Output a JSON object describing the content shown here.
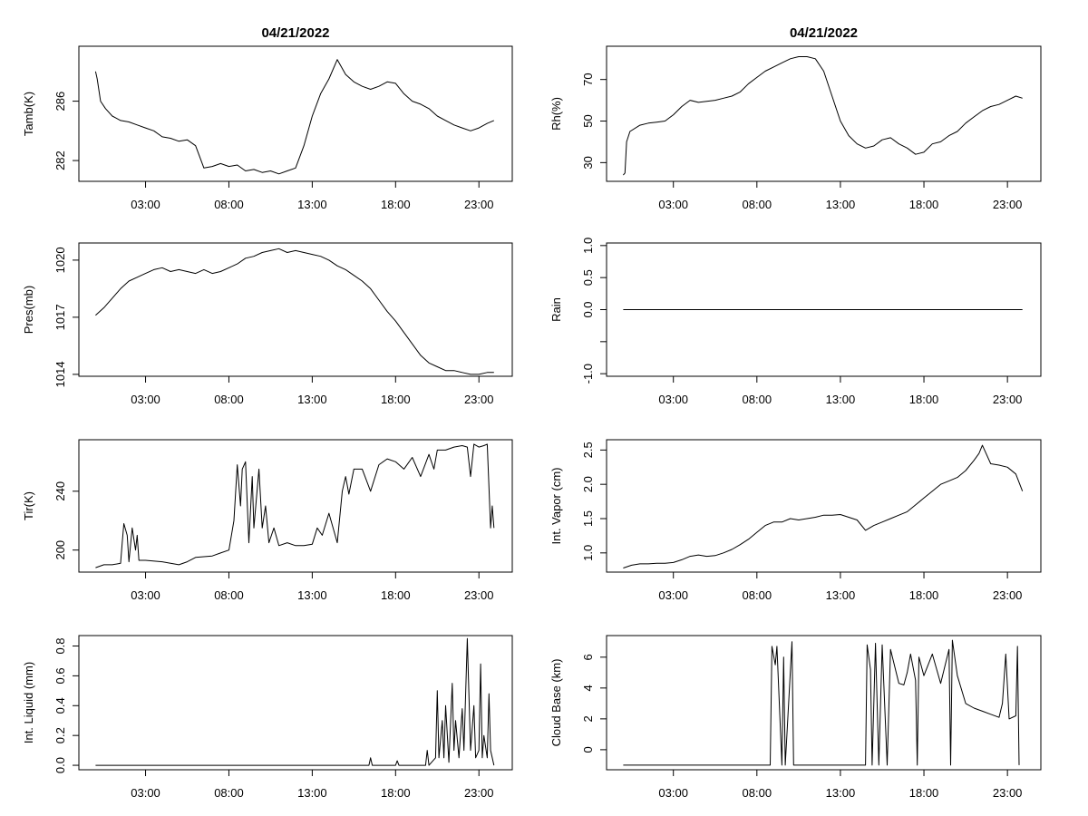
{
  "chart_data": [
    {
      "type": "line",
      "title": "04/21/2022",
      "xlabel": "",
      "ylabel": "Tamb(K)",
      "xticks": [
        "03:00",
        "08:00",
        "13:00",
        "18:00",
        "23:00"
      ],
      "xticks_hours": [
        3,
        8,
        13,
        18,
        23
      ],
      "xlim_hours": [
        -1,
        25
      ],
      "yticks": [
        282,
        286
      ],
      "yticklabels": [
        "282",
        "286"
      ],
      "ylim": [
        280.6,
        289.7
      ],
      "grid": false,
      "series": [
        {
          "x": [
            0.0,
            0.1,
            0.3,
            0.6,
            1.0,
            1.5,
            2.0,
            2.5,
            3.0,
            3.5,
            4.0,
            4.5,
            5.0,
            5.5,
            6.0,
            6.5,
            7.0,
            7.5,
            8.0,
            8.5,
            9.0,
            9.5,
            10.0,
            10.5,
            11.0,
            11.5,
            12.0,
            12.5,
            13.0,
            13.5,
            14.0,
            14.5,
            15.0,
            15.5,
            16.0,
            16.5,
            17.0,
            17.5,
            18.0,
            18.5,
            19.0,
            19.5,
            20.0,
            20.5,
            21.0,
            21.5,
            22.0,
            22.5,
            23.0,
            23.5,
            23.9
          ],
          "y": [
            288.0,
            287.5,
            286.0,
            285.5,
            285.0,
            284.7,
            284.6,
            284.4,
            284.2,
            284.0,
            283.6,
            283.5,
            283.3,
            283.4,
            283.0,
            281.5,
            281.6,
            281.8,
            281.6,
            281.7,
            281.3,
            281.4,
            281.2,
            281.3,
            281.1,
            281.3,
            281.5,
            283.0,
            285.0,
            286.5,
            287.5,
            288.8,
            287.8,
            287.3,
            287.0,
            286.8,
            287.0,
            287.3,
            287.2,
            286.5,
            286.0,
            285.8,
            285.5,
            285.0,
            284.7,
            284.4,
            284.2,
            284.0,
            284.2,
            284.5,
            284.7
          ]
        }
      ]
    },
    {
      "type": "line",
      "title": "04/21/2022",
      "xlabel": "",
      "ylabel": "Rh(%)",
      "xticks": [
        "03:00",
        "08:00",
        "13:00",
        "18:00",
        "23:00"
      ],
      "xticks_hours": [
        3,
        8,
        13,
        18,
        23
      ],
      "xlim_hours": [
        -1,
        25
      ],
      "yticks": [
        30,
        50,
        70
      ],
      "yticklabels": [
        "30",
        "50",
        "70"
      ],
      "ylim": [
        21,
        86
      ],
      "grid": false,
      "series": [
        {
          "x": [
            0.0,
            0.1,
            0.2,
            0.4,
            1.0,
            1.5,
            2.0,
            2.5,
            3.0,
            3.5,
            4.0,
            4.5,
            5.0,
            5.5,
            6.0,
            6.5,
            7.0,
            7.5,
            8.0,
            8.5,
            9.0,
            9.5,
            10.0,
            10.5,
            11.0,
            11.5,
            12.0,
            12.5,
            13.0,
            13.5,
            14.0,
            14.5,
            15.0,
            15.5,
            16.0,
            16.5,
            17.0,
            17.5,
            18.0,
            18.5,
            19.0,
            19.5,
            20.0,
            20.5,
            21.0,
            21.5,
            22.0,
            22.5,
            23.0,
            23.5,
            23.9
          ],
          "y": [
            24.0,
            25.0,
            40.0,
            45.0,
            48.0,
            49.0,
            49.5,
            50.0,
            53.0,
            57.0,
            60.0,
            59.0,
            59.5,
            60.0,
            61.0,
            62.0,
            64.0,
            68.0,
            71.0,
            74.0,
            76.0,
            78.0,
            80.0,
            81.0,
            81.0,
            80.0,
            74.0,
            62.0,
            50.0,
            43.0,
            39.0,
            37.0,
            38.0,
            41.0,
            42.0,
            39.0,
            37.0,
            34.0,
            35.0,
            39.0,
            40.0,
            43.0,
            45.0,
            49.0,
            52.0,
            55.0,
            57.0,
            58.0,
            60.0,
            62.0,
            61.0
          ]
        }
      ]
    },
    {
      "type": "line",
      "title": "",
      "xlabel": "",
      "ylabel": "Pres(mb)",
      "xticks": [
        "03:00",
        "08:00",
        "13:00",
        "18:00",
        "23:00"
      ],
      "xticks_hours": [
        3,
        8,
        13,
        18,
        23
      ],
      "xlim_hours": [
        -1,
        25
      ],
      "yticks": [
        1014,
        1017,
        1020
      ],
      "yticklabels": [
        "1014",
        "1017",
        "1020"
      ],
      "ylim": [
        1013.9,
        1020.9
      ],
      "grid": false,
      "series": [
        {
          "x": [
            0.0,
            0.5,
            1.0,
            1.5,
            2.0,
            2.5,
            3.0,
            3.5,
            4.0,
            4.5,
            5.0,
            5.5,
            6.0,
            6.5,
            7.0,
            7.5,
            8.0,
            8.5,
            9.0,
            9.5,
            10.0,
            10.5,
            11.0,
            11.5,
            12.0,
            12.5,
            13.0,
            13.5,
            14.0,
            14.5,
            15.0,
            15.5,
            16.0,
            16.5,
            17.0,
            17.5,
            18.0,
            18.5,
            19.0,
            19.5,
            20.0,
            20.5,
            21.0,
            21.5,
            22.0,
            22.5,
            23.0,
            23.5,
            23.9
          ],
          "y": [
            1017.1,
            1017.5,
            1018.0,
            1018.5,
            1018.9,
            1019.1,
            1019.3,
            1019.5,
            1019.6,
            1019.4,
            1019.5,
            1019.4,
            1019.3,
            1019.5,
            1019.3,
            1019.4,
            1019.6,
            1019.8,
            1020.1,
            1020.2,
            1020.4,
            1020.5,
            1020.6,
            1020.4,
            1020.5,
            1020.4,
            1020.3,
            1020.2,
            1020.0,
            1019.7,
            1019.5,
            1019.2,
            1018.9,
            1018.5,
            1017.9,
            1017.3,
            1016.8,
            1016.2,
            1015.6,
            1015.0,
            1014.6,
            1014.4,
            1014.2,
            1014.2,
            1014.1,
            1014.0,
            1014.0,
            1014.1,
            1014.1
          ]
        }
      ]
    },
    {
      "type": "line",
      "title": "",
      "xlabel": "",
      "ylabel": "Rain",
      "xticks": [
        "03:00",
        "08:00",
        "13:00",
        "18:00",
        "23:00"
      ],
      "xticks_hours": [
        3,
        8,
        13,
        18,
        23
      ],
      "xlim_hours": [
        -1,
        25
      ],
      "yticks": [
        -1.0,
        -0.5,
        0.0,
        0.5,
        1.0
      ],
      "yticklabels": [
        "-1.0",
        "",
        "0.0",
        "0.5",
        "1.0"
      ],
      "ylim": [
        -1.04,
        1.04
      ],
      "grid": false,
      "series": [
        {
          "x": [
            0.0,
            23.9
          ],
          "y": [
            0.0,
            0.0
          ]
        }
      ]
    },
    {
      "type": "line",
      "title": "",
      "xlabel": "",
      "ylabel": "Tir(K)",
      "xticks": [
        "03:00",
        "08:00",
        "13:00",
        "18:00",
        "23:00"
      ],
      "xticks_hours": [
        3,
        8,
        13,
        18,
        23
      ],
      "xlim_hours": [
        -1,
        25
      ],
      "yticks": [
        200,
        240
      ],
      "yticklabels": [
        "200",
        "240"
      ],
      "ylim": [
        185,
        275
      ],
      "grid": false,
      "series": [
        {
          "x": [
            0.0,
            0.5,
            1.0,
            1.5,
            1.6,
            1.7,
            1.9,
            2.0,
            2.2,
            2.4,
            2.5,
            2.6,
            3.0,
            4.0,
            5.0,
            5.5,
            6.0,
            7.0,
            7.5,
            8.0,
            8.3,
            8.5,
            8.7,
            8.8,
            9.0,
            9.2,
            9.4,
            9.5,
            9.8,
            10.0,
            10.2,
            10.4,
            10.7,
            11.0,
            11.5,
            12.0,
            12.5,
            13.0,
            13.3,
            13.6,
            14.0,
            14.5,
            14.8,
            15.0,
            15.2,
            15.5,
            16.0,
            16.5,
            17.0,
            17.5,
            18.0,
            18.5,
            19.0,
            19.5,
            20.0,
            20.3,
            20.5,
            21.0,
            21.5,
            22.0,
            22.3,
            22.5,
            22.7,
            23.0,
            23.3,
            23.5,
            23.7,
            23.8,
            23.9
          ],
          "y": [
            188,
            190,
            190,
            191,
            205,
            218,
            210,
            192,
            215,
            200,
            210,
            193,
            193,
            192,
            190,
            192,
            195,
            196,
            198,
            200,
            220,
            258,
            230,
            255,
            260,
            205,
            250,
            215,
            255,
            215,
            230,
            205,
            215,
            203,
            205,
            203,
            203,
            204,
            215,
            210,
            225,
            205,
            240,
            250,
            238,
            255,
            255,
            240,
            258,
            262,
            260,
            255,
            263,
            250,
            265,
            255,
            268,
            268,
            270,
            271,
            270,
            250,
            272,
            270,
            271,
            272,
            215,
            230,
            215
          ]
        }
      ]
    },
    {
      "type": "line",
      "title": "",
      "xlabel": "",
      "ylabel": "Int. Vapor (cm)",
      "xticks": [
        "03:00",
        "08:00",
        "13:00",
        "18:00",
        "23:00"
      ],
      "xticks_hours": [
        3,
        8,
        13,
        18,
        23
      ],
      "xlim_hours": [
        -1,
        25
      ],
      "yticks": [
        1.0,
        1.5,
        2.0,
        2.5
      ],
      "yticklabels": [
        "1.0",
        "1.5",
        "2.0",
        "2.5"
      ],
      "ylim": [
        0.72,
        2.65
      ],
      "grid": false,
      "series": [
        {
          "x": [
            0.0,
            0.5,
            1.0,
            1.5,
            2.0,
            2.5,
            3.0,
            3.5,
            4.0,
            4.5,
            5.0,
            5.5,
            6.0,
            6.5,
            7.0,
            7.5,
            8.0,
            8.5,
            9.0,
            9.5,
            10.0,
            10.5,
            11.0,
            11.5,
            12.0,
            12.5,
            13.0,
            13.5,
            14.0,
            14.5,
            15.0,
            15.5,
            16.0,
            16.5,
            17.0,
            17.5,
            18.0,
            18.5,
            19.0,
            19.5,
            20.0,
            20.5,
            21.0,
            21.3,
            21.5,
            22.0,
            22.5,
            23.0,
            23.5,
            23.9
          ],
          "y": [
            0.78,
            0.82,
            0.84,
            0.84,
            0.85,
            0.85,
            0.86,
            0.9,
            0.95,
            0.97,
            0.95,
            0.96,
            1.0,
            1.05,
            1.12,
            1.2,
            1.3,
            1.4,
            1.45,
            1.45,
            1.5,
            1.48,
            1.5,
            1.52,
            1.55,
            1.55,
            1.56,
            1.52,
            1.48,
            1.33,
            1.4,
            1.45,
            1.5,
            1.55,
            1.6,
            1.7,
            1.8,
            1.9,
            2.0,
            2.05,
            2.1,
            2.2,
            2.35,
            2.45,
            2.57,
            2.3,
            2.28,
            2.25,
            2.15,
            1.9
          ]
        }
      ]
    },
    {
      "type": "line",
      "title": "",
      "xlabel": "",
      "ylabel": "Int. Liquid (mm)",
      "xticks": [
        "03:00",
        "08:00",
        "13:00",
        "18:00",
        "23:00"
      ],
      "xticks_hours": [
        3,
        8,
        13,
        18,
        23
      ],
      "xlim_hours": [
        -1,
        25
      ],
      "yticks": [
        0.0,
        0.2,
        0.4,
        0.6,
        0.8
      ],
      "yticklabels": [
        "0.0",
        "0.2",
        "0.4",
        "0.6",
        "0.8"
      ],
      "ylim": [
        -0.03,
        0.87
      ],
      "grid": false,
      "series": [
        {
          "x": [
            0.0,
            16.4,
            16.5,
            16.6,
            18.0,
            18.1,
            18.2,
            19.8,
            19.9,
            20.0,
            20.4,
            20.5,
            20.6,
            20.8,
            20.9,
            21.0,
            21.2,
            21.4,
            21.5,
            21.6,
            21.8,
            22.0,
            22.1,
            22.3,
            22.5,
            22.7,
            22.8,
            23.0,
            23.1,
            23.2,
            23.3,
            23.5,
            23.6,
            23.7,
            23.9
          ],
          "y": [
            0.0,
            0.0,
            0.05,
            0.0,
            0.0,
            0.03,
            0.0,
            0.0,
            0.1,
            0.0,
            0.05,
            0.5,
            0.05,
            0.3,
            0.05,
            0.4,
            0.02,
            0.55,
            0.1,
            0.3,
            0.05,
            0.38,
            0.1,
            0.85,
            0.1,
            0.4,
            0.05,
            0.1,
            0.68,
            0.05,
            0.2,
            0.05,
            0.48,
            0.1,
            0.0
          ]
        }
      ]
    },
    {
      "type": "line",
      "title": "",
      "xlabel": "",
      "ylabel": "Cloud Base (km)",
      "xticks": [
        "03:00",
        "08:00",
        "13:00",
        "18:00",
        "23:00"
      ],
      "xticks_hours": [
        3,
        8,
        13,
        18,
        23
      ],
      "xlim_hours": [
        -1,
        25
      ],
      "yticks": [
        0,
        2,
        4,
        6
      ],
      "yticklabels": [
        "0",
        "2",
        "4",
        "6"
      ],
      "ylim": [
        -1.3,
        7.4
      ],
      "grid": false,
      "series": [
        {
          "x": [
            0.0,
            8.8,
            8.9,
            9.1,
            9.2,
            9.5,
            9.6,
            9.7,
            10.1,
            10.2,
            14.5,
            14.6,
            14.8,
            14.9,
            15.1,
            15.3,
            15.5,
            15.8,
            16.0,
            16.5,
            16.8,
            17.0,
            17.2,
            17.5,
            17.6,
            17.7,
            18.0,
            18.5,
            19.0,
            19.5,
            19.6,
            19.7,
            20.0,
            20.5,
            21.0,
            21.5,
            22.0,
            22.5,
            22.7,
            22.9,
            23.1,
            23.5,
            23.6,
            23.7
          ],
          "y": [
            -1.0,
            -1.0,
            6.7,
            5.5,
            6.7,
            -1.0,
            6.0,
            -1.0,
            7.0,
            -1.0,
            -1.0,
            6.8,
            5.2,
            -1.0,
            6.9,
            -1.0,
            6.8,
            -1.0,
            6.5,
            4.3,
            4.2,
            5.0,
            6.2,
            4.5,
            -1.0,
            6.0,
            4.8,
            6.2,
            4.3,
            6.5,
            -1.0,
            7.1,
            4.8,
            3.0,
            2.7,
            2.5,
            2.3,
            2.1,
            3.0,
            6.2,
            2.0,
            2.2,
            6.7,
            -1.0
          ]
        }
      ]
    }
  ]
}
